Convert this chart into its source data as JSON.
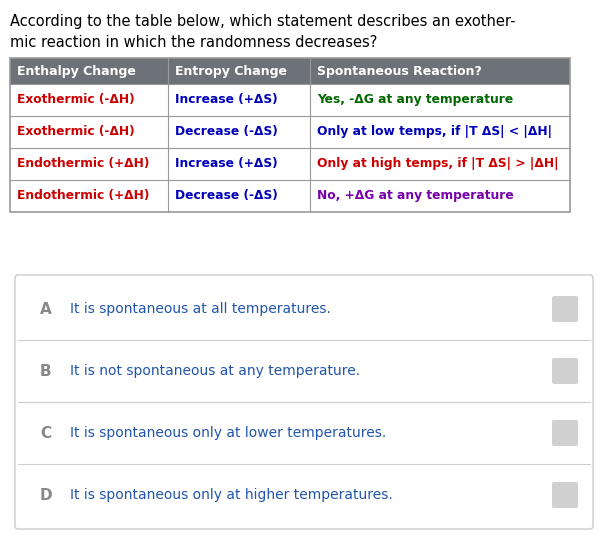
{
  "question_line1": "According to the table below, which statement describes an exother-",
  "question_line2": "mic reaction in which the randomness decreases?",
  "question_color": "#000000",
  "question_fontsize": 10.5,
  "table_header": [
    "Enthalpy Change",
    "Entropy Change",
    "Spontaneous Reaction?"
  ],
  "table_header_bg": "#6d7278",
  "table_header_color": "#ffffff",
  "table_rows": [
    {
      "col1": "Exothermic (-ΔH)",
      "col2": "Increase (+ΔS)",
      "col3": "Yes, -ΔG at any temperature",
      "col1_color": "#cc0000",
      "col2_color": "#0000bb",
      "col3_color": "#006600"
    },
    {
      "col1": "Exothermic (-ΔH)",
      "col2": "Decrease (-ΔS)",
      "col3": "Only at low temps, if |T ΔS| < |ΔH|",
      "col1_color": "#cc0000",
      "col2_color": "#0000bb",
      "col3_color": "#0000bb"
    },
    {
      "col1": "Endothermic (+ΔH)",
      "col2": "Increase (+ΔS)",
      "col3": "Only at high temps, if |T ΔS| > |ΔH|",
      "col1_color": "#cc0000",
      "col2_color": "#0000bb",
      "col3_color": "#cc0000"
    },
    {
      "col1": "Endothermic (+ΔH)",
      "col2": "Decrease (-ΔS)",
      "col3": "No, +ΔG at any temperature",
      "col1_color": "#cc0000",
      "col2_color": "#0000bb",
      "col3_color": "#7700aa"
    }
  ],
  "table_row_bg": "#ffffff",
  "table_border_color": "#999999",
  "options": [
    {
      "label": "A",
      "text": "It is spontaneous at all temperatures."
    },
    {
      "label": "B",
      "text": "It is not spontaneous at any temperature."
    },
    {
      "label": "C",
      "text": "It is spontaneous only at lower temperatures."
    },
    {
      "label": "D",
      "text": "It is spontaneous only at higher temperatures."
    }
  ],
  "option_label_color": "#888888",
  "option_text_color": "#2255aa",
  "option_fontsize": 10,
  "option_label_fontsize": 11,
  "options_box_bg": "#ffffff",
  "options_box_border": "#cccccc",
  "checkbox_color": "#d0d0d0",
  "background_color": "#ffffff"
}
